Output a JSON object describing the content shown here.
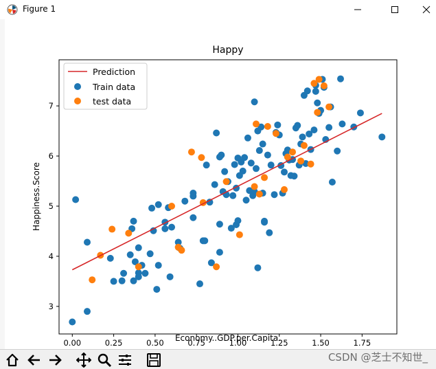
{
  "window": {
    "title": "Figure 1",
    "minimize_glyph": "—",
    "maximize_glyph": "☐",
    "close_glyph": "✕"
  },
  "toolbar": {
    "buttons": [
      {
        "name": "home-icon",
        "label": "Home"
      },
      {
        "name": "back-arrow-icon",
        "label": "Back"
      },
      {
        "name": "forward-arrow-icon",
        "label": "Forward"
      },
      {
        "name": "pan-icon",
        "label": "Pan"
      },
      {
        "name": "zoom-icon",
        "label": "Zoom"
      },
      {
        "name": "subplots-icon",
        "label": "Subplots"
      },
      {
        "name": "save-icon",
        "label": "Save"
      }
    ]
  },
  "watermark": "CSDN @芝士不知世_",
  "chart_data": {
    "type": "scatter",
    "title": "Happy",
    "xlabel": "Economy..GDP.per.Capita.",
    "ylabel": "Happiness.Score",
    "xlim": [
      -0.08,
      1.96
    ],
    "ylim": [
      2.45,
      7.92
    ],
    "xticks": [
      "0.00",
      "0.25",
      "0.50",
      "0.75",
      "1.00",
      "1.25",
      "1.50",
      "1.75"
    ],
    "xtick_values": [
      0,
      0.25,
      0.5,
      0.75,
      1.0,
      1.25,
      1.5,
      1.75
    ],
    "yticks": [
      "3",
      "4",
      "5",
      "6",
      "7"
    ],
    "ytick_values": [
      3,
      4,
      5,
      6,
      7
    ],
    "legend": {
      "position": "top-left",
      "entries": [
        "Prediction",
        "Train data",
        "test data"
      ]
    },
    "colors": {
      "prediction": "#d62728",
      "train": "#1f77b4",
      "test": "#ff7f0e"
    },
    "series": [
      {
        "name": "Prediction",
        "kind": "line",
        "x": [
          0.0,
          1.87
        ],
        "y": [
          3.73,
          6.85
        ]
      },
      {
        "name": "Train data",
        "kind": "scatter",
        "x": [
          0.0,
          0.02,
          0.09,
          0.09,
          0.23,
          0.25,
          0.3,
          0.31,
          0.35,
          0.36,
          0.37,
          0.37,
          0.38,
          0.4,
          0.4,
          0.4,
          0.42,
          0.44,
          0.47,
          0.48,
          0.49,
          0.51,
          0.52,
          0.52,
          0.56,
          0.56,
          0.58,
          0.59,
          0.6,
          0.64,
          0.65,
          0.68,
          0.73,
          0.73,
          0.73,
          0.77,
          0.79,
          0.8,
          0.81,
          0.83,
          0.84,
          0.86,
          0.87,
          0.89,
          0.89,
          0.89,
          0.9,
          0.91,
          0.92,
          0.93,
          0.94,
          0.96,
          0.97,
          0.98,
          0.99,
          0.99,
          1.0,
          1.0,
          1.01,
          1.02,
          1.03,
          1.04,
          1.05,
          1.06,
          1.07,
          1.08,
          1.09,
          1.1,
          1.1,
          1.11,
          1.12,
          1.12,
          1.13,
          1.14,
          1.15,
          1.15,
          1.16,
          1.16,
          1.18,
          1.19,
          1.2,
          1.22,
          1.23,
          1.24,
          1.25,
          1.26,
          1.27,
          1.28,
          1.29,
          1.3,
          1.31,
          1.32,
          1.33,
          1.34,
          1.35,
          1.36,
          1.37,
          1.38,
          1.39,
          1.4,
          1.41,
          1.42,
          1.43,
          1.44,
          1.46,
          1.47,
          1.47,
          1.48,
          1.49,
          1.5,
          1.51,
          1.52,
          1.53,
          1.55,
          1.56,
          1.57,
          1.6,
          1.62,
          1.63,
          1.7,
          1.74,
          1.87
        ],
        "y": [
          2.69,
          5.13,
          4.28,
          2.9,
          3.96,
          3.5,
          3.51,
          3.66,
          4.03,
          4.55,
          4.7,
          3.51,
          3.89,
          3.59,
          3.67,
          4.17,
          3.82,
          3.66,
          4.05,
          4.96,
          4.51,
          3.34,
          3.82,
          5.03,
          4.68,
          4.55,
          4.97,
          3.59,
          4.58,
          4.28,
          4.16,
          5.1,
          5.26,
          5.2,
          4.77,
          3.45,
          4.31,
          4.31,
          5.82,
          5.08,
          3.87,
          5.43,
          6.46,
          5.98,
          4.08,
          4.64,
          6.02,
          5.29,
          5.69,
          5.23,
          5.49,
          4.56,
          5.21,
          5.83,
          4.63,
          5.36,
          4.71,
          5.96,
          5.61,
          5.88,
          5.7,
          5.97,
          5.12,
          6.36,
          5.31,
          5.86,
          5.21,
          5.29,
          7.08,
          5.75,
          6.5,
          3.77,
          6.11,
          6.58,
          6.24,
          5.26,
          4.68,
          4.7,
          6.02,
          4.47,
          5.82,
          5.23,
          6.47,
          6.62,
          6.42,
          5.81,
          5.26,
          5.68,
          6.05,
          6.12,
          5.92,
          5.61,
          5.93,
          5.6,
          6.56,
          6.61,
          5.82,
          6.24,
          6.38,
          7.21,
          5.85,
          7.3,
          6.44,
          6.13,
          6.52,
          7.41,
          7.29,
          7.06,
          6.85,
          6.91,
          7.53,
          7.37,
          6.33,
          6.57,
          6.98,
          5.48,
          6.1,
          7.54,
          6.64,
          6.58,
          6.86,
          6.38
        ]
      },
      {
        "name": "test data",
        "kind": "scatter",
        "x": [
          0.12,
          0.17,
          0.24,
          0.34,
          0.4,
          0.6,
          0.64,
          0.66,
          0.72,
          0.78,
          0.79,
          0.87,
          0.93,
          1.01,
          1.1,
          1.11,
          1.13,
          1.16,
          1.18,
          1.23,
          1.28,
          1.3,
          1.33,
          1.38,
          1.4,
          1.44,
          1.46,
          1.48,
          1.49,
          1.52,
          1.55
        ],
        "y": [
          3.53,
          4.02,
          4.54,
          4.46,
          3.79,
          5.0,
          4.18,
          4.12,
          6.08,
          5.97,
          5.07,
          3.79,
          5.49,
          4.43,
          5.39,
          6.64,
          5.24,
          5.57,
          6.59,
          6.45,
          5.33,
          5.98,
          6.08,
          5.9,
          6.21,
          5.84,
          7.45,
          6.87,
          7.53,
          7.4,
          6.98
        ]
      }
    ]
  }
}
